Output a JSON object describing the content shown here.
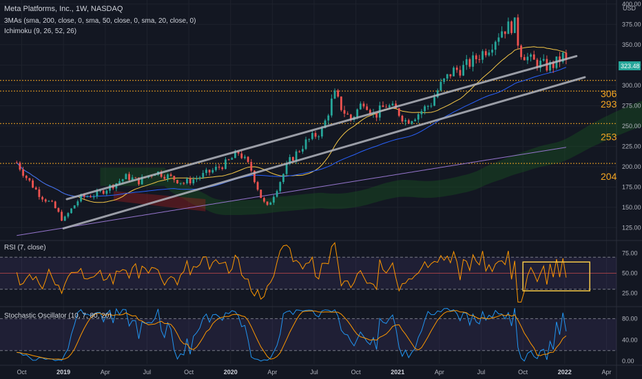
{
  "header": {
    "symbol_line": "Meta Platforms, Inc., 1W, NASDAQ",
    "indicator_mas": "3MAs (sma, 200, close, 0, sma, 50, close, 0, sma, 20, close, 0)",
    "indicator_ichimoku": "Ichimoku (9, 26, 52, 26)",
    "indicator_rsi": "RSI (7, close)",
    "indicator_stoch": "Stochastic Oscillator (10, 7, 80, 20)"
  },
  "currency_label": "USD",
  "last_price_label": "323.48",
  "colors": {
    "background": "#131722",
    "up": "#26a69a",
    "down": "#ef5350",
    "sma20": "#f7c948",
    "sma50": "#2962ff",
    "sma200": "#9575cd",
    "trendline": "#b2b5be",
    "level": "#f5a623",
    "rsi": "#ff9800",
    "stoch_k": "#2196f3",
    "stoch_d": "#ff9800",
    "cloud_bull": "#1b5e20",
    "cloud_bear": "#b71c1c",
    "highlight_box": "#f7c948"
  },
  "chart_data": [
    {
      "type": "candlestick",
      "panel": "price",
      "y_ticks": [
        "400.00",
        "375.00",
        "350.00",
        "325.00",
        "300.00",
        "275.00",
        "250.00",
        "225.00",
        "200.00",
        "175.00",
        "150.00",
        "125.00"
      ],
      "x_ticks": [
        "Oct",
        "2019",
        "Apr",
        "Jul",
        "Oct",
        "2020",
        "Apr",
        "Jul",
        "Oct",
        "2021",
        "Apr",
        "Jul",
        "Oct",
        "2022",
        "Apr"
      ],
      "ylim": [
        110,
        405
      ],
      "close_path": [
        [
          2018.72,
          205
        ],
        [
          2018.78,
          186
        ],
        [
          2018.86,
          165
        ],
        [
          2018.94,
          152
        ],
        [
          2019.0,
          133
        ],
        [
          2019.02,
          140
        ],
        [
          2019.1,
          162
        ],
        [
          2019.2,
          166
        ],
        [
          2019.3,
          178
        ],
        [
          2019.38,
          188
        ],
        [
          2019.45,
          182
        ],
        [
          2019.55,
          194
        ],
        [
          2019.65,
          186
        ],
        [
          2019.72,
          180
        ],
        [
          2019.8,
          186
        ],
        [
          2019.9,
          196
        ],
        [
          2019.98,
          205
        ],
        [
          2020.05,
          218
        ],
        [
          2020.12,
          198
        ],
        [
          2020.19,
          158
        ],
        [
          2020.22,
          150
        ],
        [
          2020.28,
          175
        ],
        [
          2020.35,
          206
        ],
        [
          2020.45,
          230
        ],
        [
          2020.55,
          245
        ],
        [
          2020.62,
          290
        ],
        [
          2020.67,
          270
        ],
        [
          2020.72,
          258
        ],
        [
          2020.8,
          282
        ],
        [
          2020.86,
          262
        ],
        [
          2020.93,
          276
        ],
        [
          2021.0,
          268
        ],
        [
          2021.05,
          256
        ],
        [
          2021.12,
          265
        ],
        [
          2021.2,
          278
        ],
        [
          2021.25,
          298
        ],
        [
          2021.33,
          318
        ],
        [
          2021.38,
          320
        ],
        [
          2021.45,
          330
        ],
        [
          2021.55,
          348
        ],
        [
          2021.62,
          368
        ],
        [
          2021.7,
          375
        ],
        [
          2021.73,
          343
        ],
        [
          2021.8,
          330
        ],
        [
          2021.9,
          323
        ],
        [
          2021.94,
          326
        ],
        [
          2021.99,
          336
        ],
        [
          2022.02,
          323
        ]
      ],
      "horizontal_levels": [
        {
          "label": "306",
          "price": 306
        },
        {
          "label": "293",
          "price": 293
        },
        {
          "label": "253",
          "price": 253
        },
        {
          "label": "204",
          "price": 204
        }
      ],
      "trendlines": [
        {
          "from": [
            2019.02,
            160
          ],
          "to": [
            2022.07,
            336
          ]
        },
        {
          "from": [
            2019.0,
            124
          ],
          "to": [
            2022.12,
            310
          ]
        }
      ]
    },
    {
      "type": "line",
      "panel": "rsi",
      "y_ticks": [
        "75.00",
        "50.00",
        "25.00"
      ],
      "ylim": [
        10,
        90
      ],
      "levels": [
        70,
        50,
        30
      ],
      "highlight_box": {
        "x": [
          2021.75,
          2022.15
        ],
        "y": [
          28,
          64
        ]
      }
    },
    {
      "type": "line",
      "panel": "stochastic",
      "y_ticks": [
        "80.00",
        "40.00",
        "0.00"
      ],
      "ylim": [
        -5,
        100
      ],
      "levels": [
        80,
        20
      ]
    }
  ]
}
